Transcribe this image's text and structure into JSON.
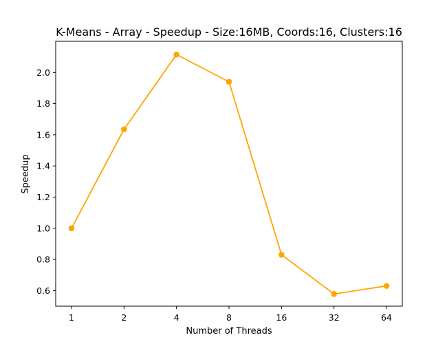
{
  "chart_data": {
    "type": "line",
    "title": "K-Means - Array - Speedup - Size:16MB, Coords:16, Clusters:16",
    "xlabel": "Number of Threads",
    "ylabel": "Speedup",
    "categories": [
      "1",
      "2",
      "4",
      "8",
      "16",
      "32",
      "64"
    ],
    "series": [
      {
        "values": [
          1.0,
          1.635,
          2.115,
          1.94,
          0.83,
          0.578,
          0.63
        ],
        "color": "#ffa500",
        "marker": "circle"
      }
    ],
    "ylim": [
      0.5,
      2.2
    ],
    "yticks": [
      0.6,
      0.8,
      1.0,
      1.2,
      1.4,
      1.6,
      1.8,
      2.0
    ],
    "ytick_labels": [
      "0.6",
      "0.8",
      "1.0",
      "1.2",
      "1.4",
      "1.6",
      "1.8",
      "2.0"
    ],
    "grid": false,
    "legend": "none"
  }
}
